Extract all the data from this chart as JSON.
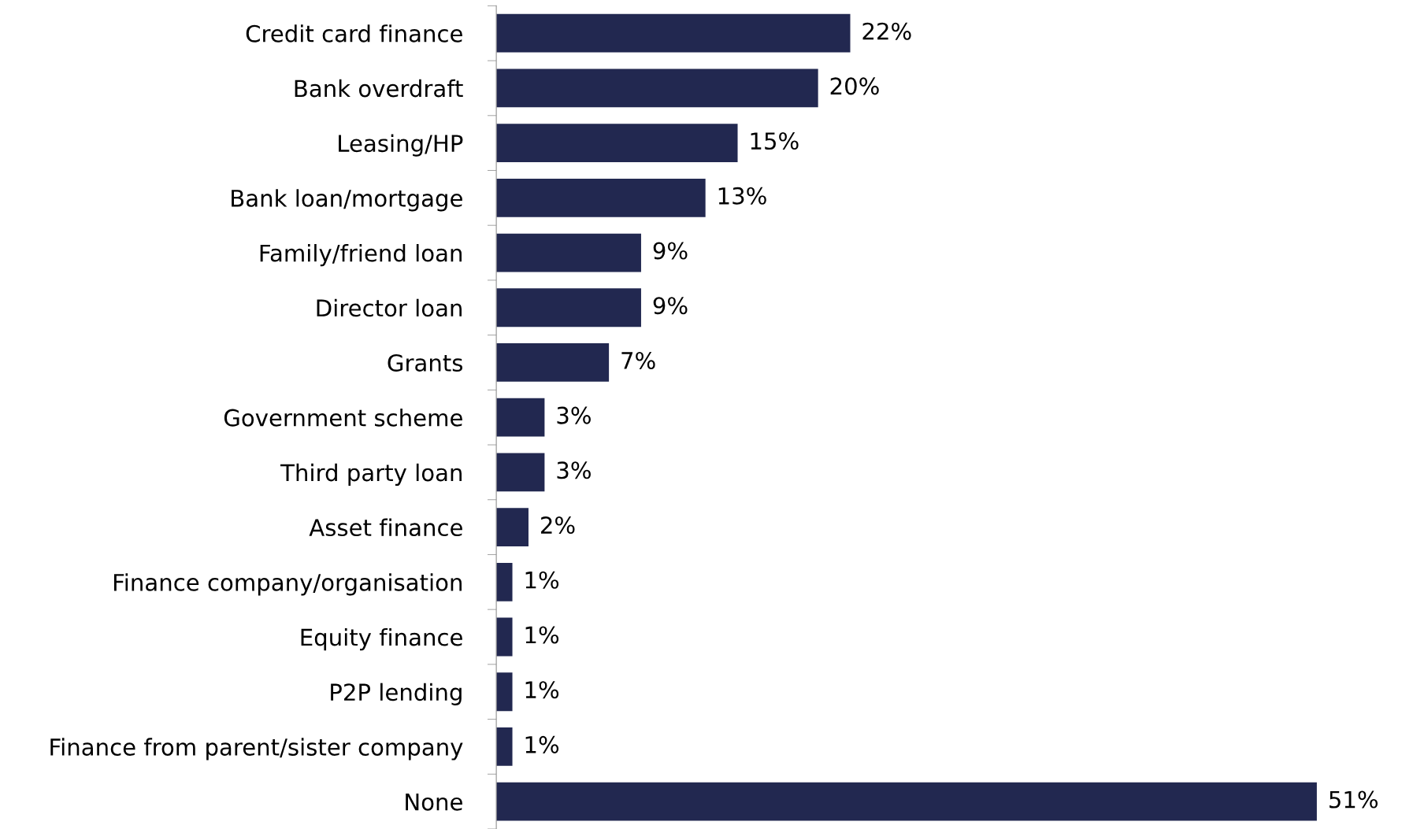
{
  "chart_data": {
    "type": "bar",
    "orientation": "horizontal",
    "categories": [
      "Credit card finance",
      "Bank overdraft",
      "Leasing/HP",
      "Bank loan/mortgage",
      "Family/friend loan",
      "Director loan",
      "Grants",
      "Government scheme",
      "Third party loan",
      "Asset finance",
      "Finance company/organisation",
      "Equity finance",
      "P2P lending",
      "Finance from parent/sister company",
      "None"
    ],
    "values": [
      22,
      20,
      15,
      13,
      9,
      9,
      7,
      3,
      3,
      2,
      1,
      1,
      1,
      1,
      51
    ],
    "value_labels": [
      "22%",
      "20%",
      "15%",
      "13%",
      "9%",
      "9%",
      "7%",
      "3%",
      "3%",
      "2%",
      "1%",
      "1%",
      "1%",
      "1%",
      "51%"
    ],
    "color": "#222850",
    "grid": false,
    "legend": false
  }
}
